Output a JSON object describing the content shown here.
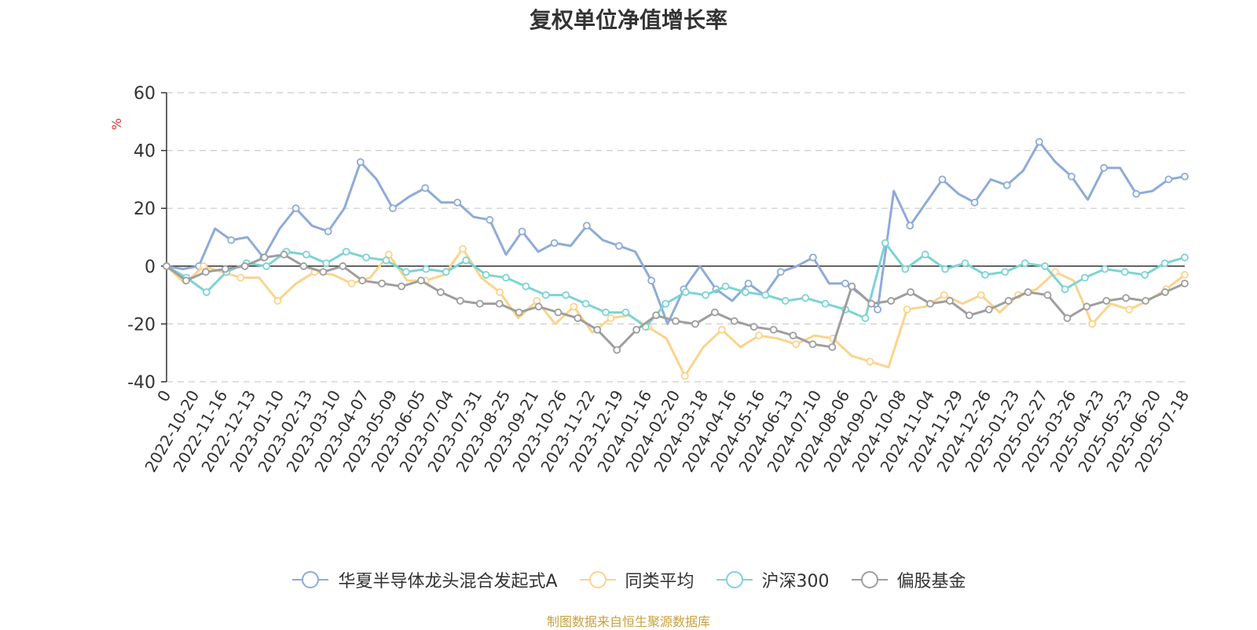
{
  "chart_data": {
    "type": "line",
    "title": "复权单位净值增长率",
    "ylabel": "%",
    "xlabel": "",
    "ylim": [
      -40,
      60
    ],
    "yticks": [
      -40,
      -20,
      0,
      20,
      40,
      60
    ],
    "grid": "horizontal-dashed",
    "legend_position": "bottom",
    "x_tick_labels": [
      "0",
      "2022-10-20",
      "2022-11-16",
      "2022-12-13",
      "2023-01-10",
      "2023-02-13",
      "2023-03-10",
      "2023-04-07",
      "2023-05-09",
      "2023-06-05",
      "2023-07-04",
      "2023-07-31",
      "2023-08-25",
      "2023-09-21",
      "2023-10-26",
      "2023-11-22",
      "2023-12-19",
      "2024-01-16",
      "2024-02-20",
      "2024-03-18",
      "2024-04-16",
      "2024-05-16",
      "2024-06-13",
      "2024-07-10",
      "2024-08-06",
      "2024-09-02",
      "2024-10-08",
      "2024-11-04",
      "2024-11-29",
      "2024-12-26",
      "2025-01-23",
      "2025-02-27",
      "2025-03-26",
      "2025-04-23",
      "2025-05-23",
      "2025-06-20",
      "2025-07-18"
    ],
    "series": [
      {
        "name": "华夏半导体龙头混合发起式A",
        "color": "#8eabd8",
        "values": [
          0,
          -1,
          0,
          13,
          9,
          10,
          3,
          13,
          20,
          14,
          12,
          20,
          36,
          30,
          20,
          24,
          27,
          22,
          22,
          17,
          16,
          4,
          12,
          5,
          8,
          7,
          14,
          9,
          7,
          5,
          -5,
          -20,
          -8,
          0,
          -8,
          -12,
          -6,
          -10,
          -2,
          0,
          3,
          -6,
          -6,
          -10,
          -15,
          26,
          14,
          22,
          30,
          25,
          22,
          30,
          28,
          33,
          43,
          36,
          31,
          23,
          34,
          34,
          25,
          26,
          30,
          31
        ]
      },
      {
        "name": "同类平均",
        "color": "#fad48c",
        "values": [
          0,
          -6,
          0,
          -2,
          -4,
          -4,
          -12,
          -6,
          -2,
          -3,
          -6,
          -4,
          4,
          -5,
          -5,
          -3,
          6,
          -4,
          -9,
          -18,
          -12,
          -20,
          -14,
          -23,
          -18,
          -17,
          -21,
          -25,
          -38,
          -28,
          -22,
          -28,
          -24,
          -25,
          -27,
          -24,
          -25,
          -31,
          -33,
          -35,
          -15,
          -14,
          -10,
          -13,
          -10,
          -16,
          -10,
          -8,
          -2,
          -5,
          -20,
          -13,
          -15,
          -12,
          -8,
          -3
        ]
      },
      {
        "name": "沪深300",
        "color": "#7ed3d3",
        "values": [
          0,
          -4,
          -9,
          -2,
          1,
          0,
          5,
          4,
          1,
          5,
          3,
          2,
          -2,
          -1,
          -2,
          2,
          -3,
          -4,
          -7,
          -10,
          -10,
          -13,
          -16,
          -16,
          -21,
          -13,
          -9,
          -10,
          -7,
          -9,
          -10,
          -12,
          -11,
          -13,
          -15,
          -18,
          8,
          -1,
          4,
          -1,
          1,
          -3,
          -2,
          1,
          0,
          -8,
          -4,
          -1,
          -2,
          -3,
          1,
          3
        ]
      },
      {
        "name": "偏股基金",
        "color": "#9e9e9e",
        "values": [
          0,
          -5,
          -2,
          -1,
          0,
          3,
          4,
          0,
          -2,
          0,
          -5,
          -6,
          -7,
          -5,
          -9,
          -12,
          -13,
          -13,
          -16,
          -14,
          -16,
          -18,
          -22,
          -29,
          -22,
          -17,
          -19,
          -20,
          -16,
          -19,
          -21,
          -22,
          -24,
          -27,
          -28,
          -7,
          -13,
          -12,
          -9,
          -13,
          -12,
          -17,
          -15,
          -12,
          -9,
          -10,
          -18,
          -14,
          -12,
          -11,
          -12,
          -9,
          -6
        ]
      }
    ]
  },
  "source_note": "制图数据来自恒生聚源数据库"
}
